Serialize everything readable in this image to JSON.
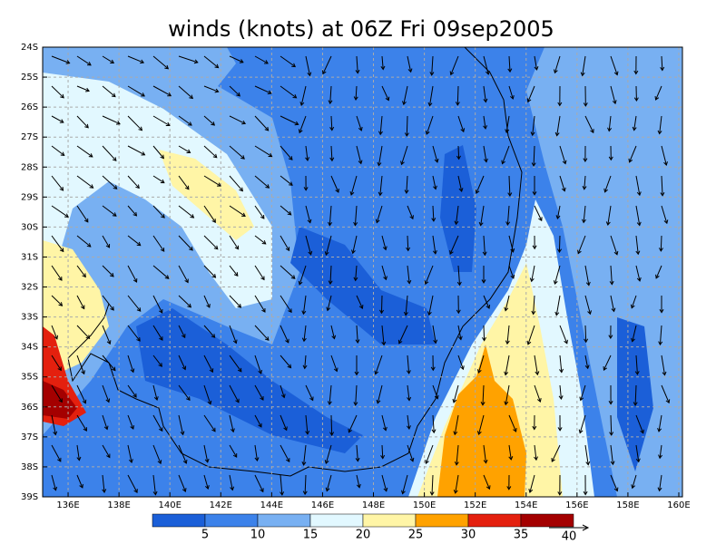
{
  "title": "winds (knots) at 06Z Fri 09sep2005",
  "map": {
    "lat_labels": [
      "24S",
      "25S",
      "26S",
      "27S",
      "28S",
      "29S",
      "30S",
      "31S",
      "32S",
      "33S",
      "34S",
      "35S",
      "36S",
      "37S",
      "38S",
      "39S"
    ],
    "lon_labels": [
      "136E",
      "138E",
      "140E",
      "142E",
      "144E",
      "146E",
      "148E",
      "150E",
      "152E",
      "154E",
      "156E",
      "158E",
      "160E"
    ]
  },
  "colorbar": {
    "labels": [
      "5",
      "10",
      "15",
      "20",
      "25",
      "30",
      "35"
    ],
    "colors": [
      "#1b5fd8",
      "#3c82ea",
      "#78b0f2",
      "#e2f8ff",
      "#fff5a6",
      "#ffa200",
      "#e4200e",
      "#a40000"
    ]
  },
  "vector_key": "40"
}
